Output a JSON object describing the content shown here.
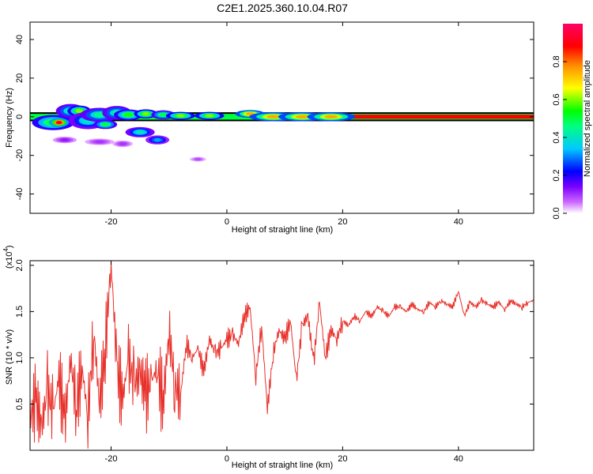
{
  "title": "C2E1.2025.360.10.04.R07",
  "chart_data": [
    {
      "type": "heatmap",
      "xlabel": "Height of straight line (km)",
      "ylabel": "Frequency (Hz)",
      "xlim": [
        -34,
        53
      ],
      "ylim": [
        -50,
        49
      ],
      "xticks": [
        -20,
        0,
        20,
        40
      ],
      "yticks": [
        -40,
        -20,
        0,
        20,
        40
      ],
      "colorbar": {
        "label": "Normalized spectral amplitude",
        "range": [
          0.0,
          1.0
        ],
        "ticks": [
          "0.0",
          "0.2",
          "0.4",
          "0.6",
          "0.8"
        ],
        "tick_values": [
          0.0,
          0.2,
          0.4,
          0.6,
          0.8
        ],
        "stops": [
          "#ffffff",
          "#9b30ff",
          "#0000ff",
          "#00d8e0",
          "#00ff00",
          "#ffff00",
          "#ff8c00",
          "#ff0000",
          "#ff0066"
        ]
      },
      "ridge": {
        "frequency": 0,
        "x_from": -34,
        "x_to": 53,
        "band_hz": 1.5
      },
      "blobs": [
        {
          "x": -30,
          "y": -3,
          "wx": 2.2,
          "wy": 2.2,
          "v": 0.55
        },
        {
          "x": -29,
          "y": -3,
          "wx": 1.0,
          "wy": 1.2,
          "v": 0.9
        },
        {
          "x": -27,
          "y": 3,
          "wx": 1.5,
          "wy": 2.0,
          "v": 0.45
        },
        {
          "x": -25.5,
          "y": 3,
          "wx": 1.2,
          "wy": 1.5,
          "v": 0.6
        },
        {
          "x": -24,
          "y": -2,
          "wx": 2.0,
          "wy": 2.5,
          "v": 0.4
        },
        {
          "x": -22,
          "y": 1,
          "wx": 2.0,
          "wy": 2.0,
          "v": 0.45
        },
        {
          "x": -21,
          "y": -4,
          "wx": 1.2,
          "wy": 1.2,
          "v": 0.5
        },
        {
          "x": -19,
          "y": 2,
          "wx": 1.5,
          "wy": 2.0,
          "v": 0.45
        },
        {
          "x": -17,
          "y": 1,
          "wx": 1.5,
          "wy": 1.5,
          "v": 0.55
        },
        {
          "x": -15,
          "y": -8,
          "wx": 1.5,
          "wy": 1.4,
          "v": 0.4
        },
        {
          "x": -14,
          "y": 1.5,
          "wx": 1.2,
          "wy": 1.2,
          "v": 0.6
        },
        {
          "x": -12,
          "y": -12,
          "wx": 1.2,
          "wy": 1.2,
          "v": 0.32
        },
        {
          "x": -11,
          "y": 1,
          "wx": 1.2,
          "wy": 1.2,
          "v": 0.5
        },
        {
          "x": -8,
          "y": 0.5,
          "wx": 1.5,
          "wy": 1.0,
          "v": 0.6
        },
        {
          "x": -3,
          "y": 0.5,
          "wx": 1.5,
          "wy": 1.0,
          "v": 0.6
        },
        {
          "x": 4,
          "y": 1.5,
          "wx": 1.5,
          "wy": 1.0,
          "v": 0.75
        },
        {
          "x": 8,
          "y": 0,
          "wx": 2.5,
          "wy": 1.2,
          "v": 0.75
        },
        {
          "x": 13,
          "y": 0,
          "wx": 2.5,
          "wy": 1.2,
          "v": 0.75
        },
        {
          "x": 18,
          "y": 0,
          "wx": 2.5,
          "wy": 1.2,
          "v": 0.75
        },
        {
          "x": -28,
          "y": -12,
          "wx": 1.2,
          "wy": 0.8,
          "v": 0.12
        },
        {
          "x": -22,
          "y": -13,
          "wx": 1.5,
          "wy": 0.8,
          "v": 0.1
        },
        {
          "x": -18,
          "y": -14,
          "wx": 1.0,
          "wy": 0.8,
          "v": 0.1
        },
        {
          "x": -5,
          "y": -22,
          "wx": 0.8,
          "wy": 0.5,
          "v": 0.08
        }
      ]
    },
    {
      "type": "line",
      "xlabel": "Height of straight line (km)",
      "ylabel": "SNR (10 * v/v)",
      "scale_label": "(x10",
      "scale_exponent": "4",
      "scale_suffix": ")",
      "xlim": [
        -34,
        53
      ],
      "ylim": [
        0.0,
        2.05
      ],
      "xticks": [
        -20,
        0,
        20,
        40
      ],
      "yticks": [
        0.5,
        1.0,
        1.5,
        2.0
      ],
      "ytick_labels": [
        "0.5",
        "1.0",
        "1.5",
        "2.0"
      ],
      "series": [
        {
          "name": "SNR",
          "color": "#e8302a",
          "x": [
            -34,
            -33,
            -32,
            -31,
            -30,
            -29,
            -28,
            -27,
            -26,
            -25,
            -24,
            -23,
            -22,
            -21,
            -20,
            -19,
            -18,
            -17,
            -16,
            -15,
            -14,
            -13,
            -12,
            -11,
            -10,
            -9,
            -8,
            -7,
            -6,
            -5,
            -4,
            -3,
            -2,
            -1,
            0,
            1,
            2,
            3,
            4,
            5,
            6,
            7,
            8,
            9,
            10,
            11,
            12,
            13,
            14,
            15,
            16,
            17,
            18,
            19,
            20,
            21,
            22,
            23,
            24,
            25,
            26,
            27,
            28,
            29,
            30,
            31,
            32,
            33,
            34,
            35,
            36,
            37,
            38,
            39,
            40,
            41,
            42,
            43,
            44,
            45,
            46,
            47,
            48,
            49,
            50,
            51,
            52,
            53
          ],
          "y": [
            0.35,
            0.55,
            0.25,
            0.65,
            0.4,
            0.8,
            0.3,
            1.0,
            0.45,
            0.9,
            0.35,
            1.3,
            0.5,
            1.1,
            2.05,
            0.9,
            0.55,
            1.0,
            0.7,
            0.85,
            0.6,
            0.75,
            0.9,
            0.5,
            1.3,
            0.7,
            0.6,
            1.15,
            1.0,
            1.1,
            0.85,
            1.2,
            1.05,
            1.1,
            1.2,
            1.25,
            1.15,
            1.45,
            1.55,
            0.8,
            1.35,
            0.45,
            1.05,
            1.3,
            1.2,
            1.4,
            0.75,
            1.35,
            1.45,
            0.95,
            1.6,
            1.0,
            1.3,
            1.2,
            1.4,
            1.35,
            1.45,
            1.4,
            1.5,
            1.45,
            1.55,
            1.5,
            1.45,
            1.55,
            1.55,
            1.5,
            1.58,
            1.52,
            1.5,
            1.6,
            1.55,
            1.62,
            1.58,
            1.55,
            1.72,
            1.45,
            1.6,
            1.55,
            1.62,
            1.58,
            1.55,
            1.6,
            1.52,
            1.62,
            1.58,
            1.55,
            1.6,
            1.62
          ]
        }
      ]
    }
  ]
}
